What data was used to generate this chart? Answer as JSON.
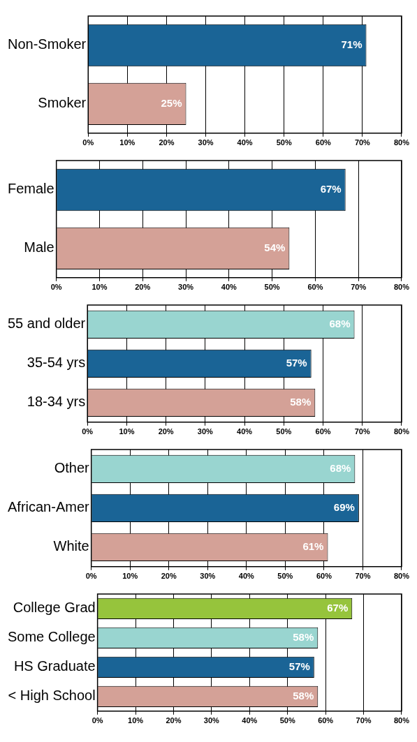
{
  "chart_data": [
    {
      "type": "bar",
      "orientation": "horizontal",
      "categories": [
        "Non-Smoker",
        "Smoker"
      ],
      "values": [
        71,
        25
      ],
      "colors": [
        "#1a6496",
        "#d4a197"
      ],
      "value_labels": [
        "71%",
        "25%"
      ],
      "xlim": [
        0,
        80
      ],
      "xticks": [
        {
          "value": 0,
          "label": "0%"
        },
        {
          "value": 10,
          "label": "10%"
        },
        {
          "value": 20,
          "label": "20%"
        },
        {
          "value": 30,
          "label": "30%"
        },
        {
          "value": 40,
          "label": "40%"
        },
        {
          "value": 50,
          "label": "50%"
        },
        {
          "value": 60,
          "label": "60%"
        },
        {
          "value": 70,
          "label": "70%"
        },
        {
          "value": 80,
          "label": "80%"
        }
      ],
      "grid": "x",
      "legend": false
    },
    {
      "type": "bar",
      "orientation": "horizontal",
      "categories": [
        "Female",
        "Male"
      ],
      "values": [
        67,
        54
      ],
      "colors": [
        "#1a6496",
        "#d4a197"
      ],
      "value_labels": [
        "67%",
        "54%"
      ],
      "xlim": [
        0,
        80
      ],
      "xticks": [
        {
          "value": 0,
          "label": "0%"
        },
        {
          "value": 10,
          "label": "10%"
        },
        {
          "value": 20,
          "label": "20%"
        },
        {
          "value": 30,
          "label": "30%"
        },
        {
          "value": 40,
          "label": "40%"
        },
        {
          "value": 50,
          "label": "50%"
        },
        {
          "value": 60,
          "label": "60%"
        },
        {
          "value": 70,
          "label": "70%"
        },
        {
          "value": 80,
          "label": "80%"
        }
      ],
      "grid": "x",
      "legend": false
    },
    {
      "type": "bar",
      "orientation": "horizontal",
      "categories": [
        "55 and older",
        "35-54 yrs",
        "18-34 yrs"
      ],
      "values": [
        68,
        57,
        58
      ],
      "colors": [
        "#99d5d0",
        "#1a6496",
        "#d4a197"
      ],
      "value_labels": [
        "68%",
        "57%",
        "58%"
      ],
      "xlim": [
        0,
        80
      ],
      "xticks": [
        {
          "value": 0,
          "label": "0%"
        },
        {
          "value": 10,
          "label": "10%"
        },
        {
          "value": 20,
          "label": "20%"
        },
        {
          "value": 30,
          "label": "30%"
        },
        {
          "value": 40,
          "label": "40%"
        },
        {
          "value": 50,
          "label": "50%"
        },
        {
          "value": 60,
          "label": "60%"
        },
        {
          "value": 70,
          "label": "70%"
        },
        {
          "value": 80,
          "label": "80%"
        }
      ],
      "grid": "x",
      "legend": false
    },
    {
      "type": "bar",
      "orientation": "horizontal",
      "categories": [
        "Other",
        "African-Amer",
        "White"
      ],
      "values": [
        68,
        69,
        61
      ],
      "colors": [
        "#99d5d0",
        "#1a6496",
        "#d4a197"
      ],
      "value_labels": [
        "68%",
        "69%",
        "61%"
      ],
      "xlim": [
        0,
        80
      ],
      "xticks": [
        {
          "value": 0,
          "label": "0%"
        },
        {
          "value": 10,
          "label": "10%"
        },
        {
          "value": 20,
          "label": "20%"
        },
        {
          "value": 30,
          "label": "30%"
        },
        {
          "value": 40,
          "label": "40%"
        },
        {
          "value": 50,
          "label": "50%"
        },
        {
          "value": 60,
          "label": "60%"
        },
        {
          "value": 70,
          "label": "70%"
        },
        {
          "value": 80,
          "label": "80%"
        }
      ],
      "grid": "x",
      "legend": false
    },
    {
      "type": "bar",
      "orientation": "horizontal",
      "categories": [
        "College Grad",
        "Some College",
        "HS Graduate",
        "< High School"
      ],
      "values": [
        67,
        58,
        57,
        58
      ],
      "colors": [
        "#96c43c",
        "#99d5d0",
        "#1a6496",
        "#d4a197"
      ],
      "value_labels": [
        "67%",
        "58%",
        "57%",
        "58%"
      ],
      "xlim": [
        0,
        80
      ],
      "xticks": [
        {
          "value": 0,
          "label": "0%"
        },
        {
          "value": 10,
          "label": "10%"
        },
        {
          "value": 20,
          "label": "20%"
        },
        {
          "value": 30,
          "label": "30%"
        },
        {
          "value": 40,
          "label": "40%"
        },
        {
          "value": 50,
          "label": "50%"
        },
        {
          "value": 60,
          "label": "60%"
        },
        {
          "value": 70,
          "label": "70%"
        },
        {
          "value": 80,
          "label": "80%"
        }
      ],
      "grid": "x",
      "legend": false
    }
  ]
}
